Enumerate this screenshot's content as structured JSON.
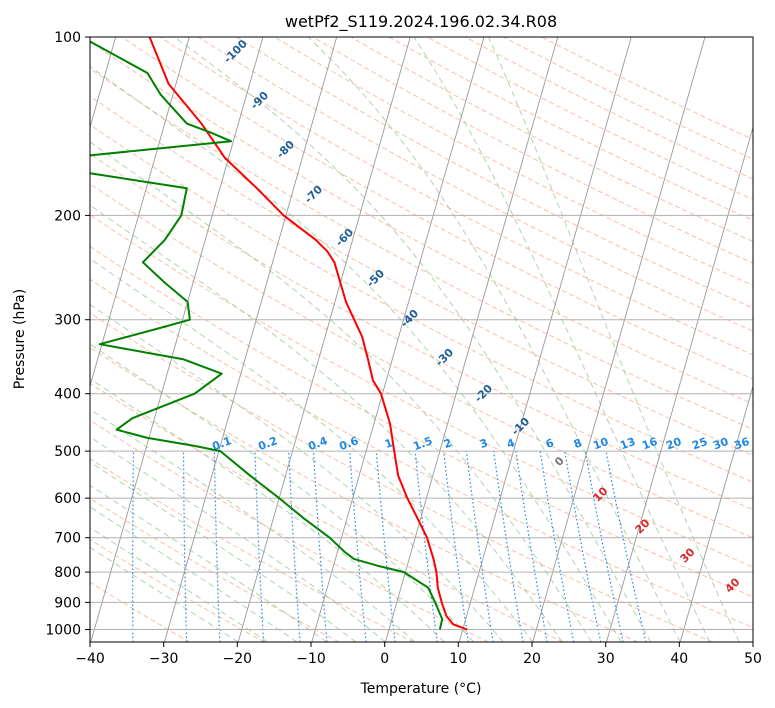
{
  "chart_data": {
    "type": "line",
    "chart_kind": "skew-T log-P diagram",
    "title": "wetPf2_S119.2024.196.02.34.R08",
    "xlabel": "Temperature (°C)",
    "ylabel": "Pressure (hPa)",
    "xlim": [
      -40,
      50
    ],
    "ylim": [
      1050,
      100
    ],
    "y_scale": "log",
    "grid": true,
    "x_ticks": [
      -40,
      -30,
      -20,
      -10,
      0,
      10,
      20,
      30,
      40,
      50
    ],
    "y_ticks": [
      1000,
      900,
      800,
      700,
      600,
      500,
      400,
      300,
      200,
      100
    ],
    "series": [
      {
        "color": "#ff0000",
        "points": [
          [
            1000,
            10.6
          ],
          [
            980,
            8.5
          ],
          [
            950,
            7.3
          ],
          [
            900,
            6.1
          ],
          [
            850,
            5.0
          ],
          [
            800,
            4.2
          ],
          [
            760,
            3.3
          ],
          [
            700,
            1.6
          ],
          [
            650,
            -0.4
          ],
          [
            600,
            -2.6
          ],
          [
            550,
            -4.7
          ],
          [
            500,
            -6.2
          ],
          [
            450,
            -7.8
          ],
          [
            400,
            -10.2
          ],
          [
            380,
            -11.8
          ],
          [
            350,
            -13.3
          ],
          [
            320,
            -15.0
          ],
          [
            300,
            -16.7
          ],
          [
            280,
            -18.5
          ],
          [
            260,
            -20.0
          ],
          [
            240,
            -21.6
          ],
          [
            230,
            -23.0
          ],
          [
            220,
            -25.0
          ],
          [
            200,
            -30.3
          ],
          [
            180,
            -35.0
          ],
          [
            160,
            -40.5
          ],
          [
            140,
            -45.0
          ],
          [
            120,
            -51.0
          ],
          [
            100,
            -55.4
          ]
        ]
      },
      {
        "color": "#008000",
        "points": [
          [
            1000,
            6.9
          ],
          [
            960,
            6.8
          ],
          [
            900,
            5.2
          ],
          [
            850,
            3.7
          ],
          [
            800,
            -0.2
          ],
          [
            780,
            -4.1
          ],
          [
            760,
            -7.5
          ],
          [
            740,
            -9.0
          ],
          [
            700,
            -11.6
          ],
          [
            650,
            -15.8
          ],
          [
            600,
            -20.0
          ],
          [
            550,
            -24.8
          ],
          [
            500,
            -29.8
          ],
          [
            490,
            -33.5
          ],
          [
            475,
            -40.2
          ],
          [
            460,
            -44.7
          ],
          [
            440,
            -43.0
          ],
          [
            400,
            -35.5
          ],
          [
            370,
            -32.6
          ],
          [
            350,
            -38.3
          ],
          [
            330,
            -50.3
          ],
          [
            310,
            -42.8
          ],
          [
            300,
            -39.0
          ],
          [
            280,
            -40.0
          ],
          [
            260,
            -43.8
          ],
          [
            240,
            -47.6
          ],
          [
            220,
            -45.5
          ],
          [
            200,
            -44.2
          ],
          [
            180,
            -44.5
          ],
          [
            170,
            -58.0
          ],
          [
            165,
            -65.0
          ],
          [
            160,
            -62.3
          ],
          [
            150,
            -40.3
          ],
          [
            145,
            -43.4
          ],
          [
            140,
            -47.0
          ],
          [
            125,
            -51.7
          ],
          [
            115,
            -54.3
          ],
          [
            100,
            -64.6
          ]
        ]
      }
    ],
    "dry_adiabat_labels": [
      "-100",
      "-90",
      "-80",
      "-70",
      "-60",
      "-50",
      "-40",
      "-30",
      "-20",
      "-10",
      "0",
      "10",
      "20",
      "30",
      "40"
    ],
    "mixing_ratio_labels": [
      "0.1",
      "0.2",
      "0.4",
      "0.6",
      "1",
      "1.5",
      "2",
      "3",
      "4",
      "6",
      "8",
      "10",
      "13",
      "16",
      "20",
      "25",
      "30",
      "36"
    ],
    "colors": {
      "temperature": "#ff0000",
      "dewpoint": "#008000",
      "dry_adiabat": "#f4a582",
      "moist_adiabat": "#99cc99",
      "mixing_ratio": "#1e88e5",
      "isotherm": "#999999",
      "label_dark_blue": "#1f5f99",
      "label_red": "#d62728"
    }
  }
}
